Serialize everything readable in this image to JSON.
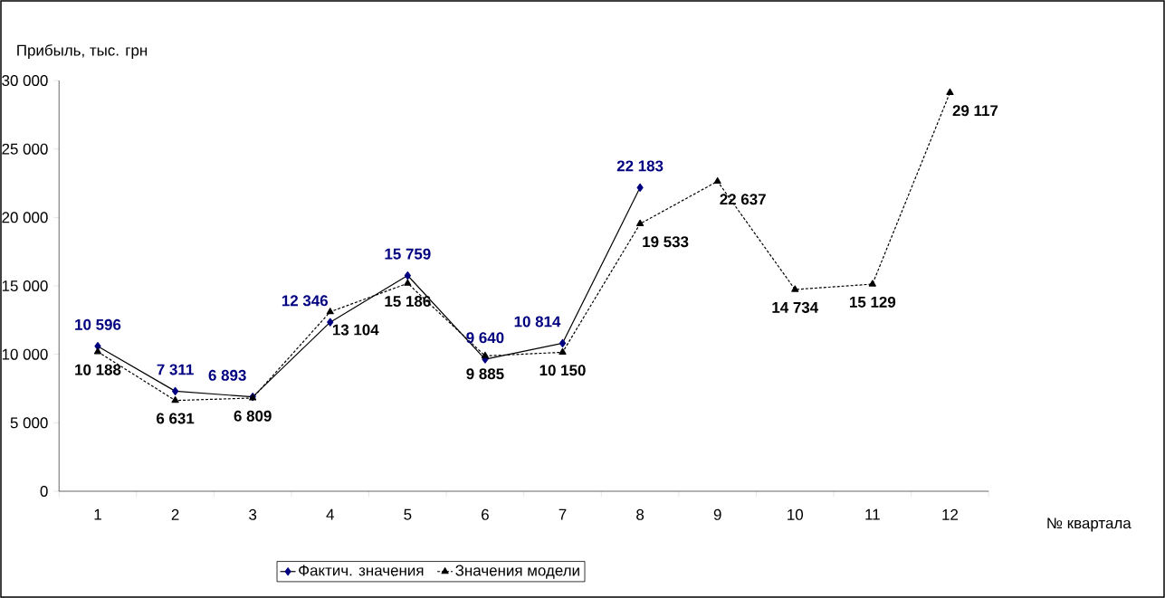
{
  "chart_data": {
    "type": "line",
    "ylabel": "Прибыль, тыс. грн",
    "xlabel": "№ квартала",
    "categories": [
      "1",
      "2",
      "3",
      "4",
      "5",
      "6",
      "7",
      "8",
      "9",
      "10",
      "11",
      "12"
    ],
    "ylim": [
      0,
      30000
    ],
    "yticks": [
      {
        "value": 0,
        "label": "0"
      },
      {
        "value": 5000,
        "label": "5 000"
      },
      {
        "value": 10000,
        "label": "10 000"
      },
      {
        "value": 15000,
        "label": "15 000"
      },
      {
        "value": 20000,
        "label": "20 000"
      },
      {
        "value": 25000,
        "label": "25 000"
      },
      {
        "value": 30000,
        "label": "30 000"
      }
    ],
    "legend": "bottom",
    "grid": false,
    "series": [
      {
        "name": "Фактич. значения",
        "color": "#000080",
        "marker": "diamond",
        "line_style": "solid",
        "values": [
          10596,
          7311,
          6893,
          12346,
          15759,
          9640,
          10814,
          22183,
          null,
          null,
          null,
          null
        ],
        "value_labels": [
          "10 596",
          "7 311",
          "6 893",
          "12 346",
          "15 759",
          "9 640",
          "10 814",
          "22 183",
          null,
          null,
          null,
          null
        ]
      },
      {
        "name": "Значения модели",
        "color": "#000000",
        "marker": "triangle",
        "line_style": "dotted",
        "values": [
          10188,
          6631,
          6809,
          13104,
          15186,
          9885,
          10150,
          19533,
          22637,
          14734,
          15129,
          29117
        ],
        "value_labels": [
          "10 188",
          "6 631",
          "6 809",
          "13 104",
          "15 186",
          "9 885",
          "10 150",
          "19 533",
          "22 637",
          "14 734",
          "15 129",
          "29 117"
        ]
      }
    ]
  }
}
